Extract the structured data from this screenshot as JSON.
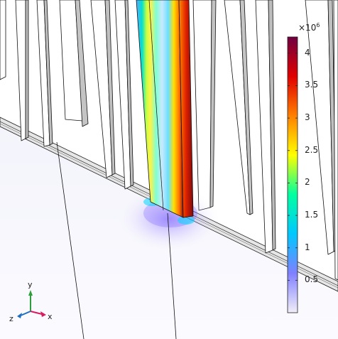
{
  "colorbar": {
    "exponent_base": "×10",
    "exponent_power": "6",
    "ticks": [
      {
        "value": 0.5,
        "label": "0.5"
      },
      {
        "value": 1,
        "label": "1"
      },
      {
        "value": 1.5,
        "label": "1.5"
      },
      {
        "value": 2,
        "label": "2"
      },
      {
        "value": 2.5,
        "label": "2.5"
      },
      {
        "value": 3,
        "label": "3"
      },
      {
        "value": 3.5,
        "label": "3.5"
      },
      {
        "value": 4,
        "label": "4"
      }
    ],
    "min": 0,
    "max": 4.25,
    "colors": [
      "#f2eef7",
      "#8080ff",
      "#00c8ff",
      "#00ffa0",
      "#ffff00",
      "#ff8000",
      "#e00000",
      "#700040"
    ]
  },
  "axis_triad": {
    "x": "x",
    "y": "y",
    "z": "z",
    "colors": {
      "x": "#d81b60",
      "y": "#2e9e3c",
      "z": "#1f6fbf"
    }
  }
}
